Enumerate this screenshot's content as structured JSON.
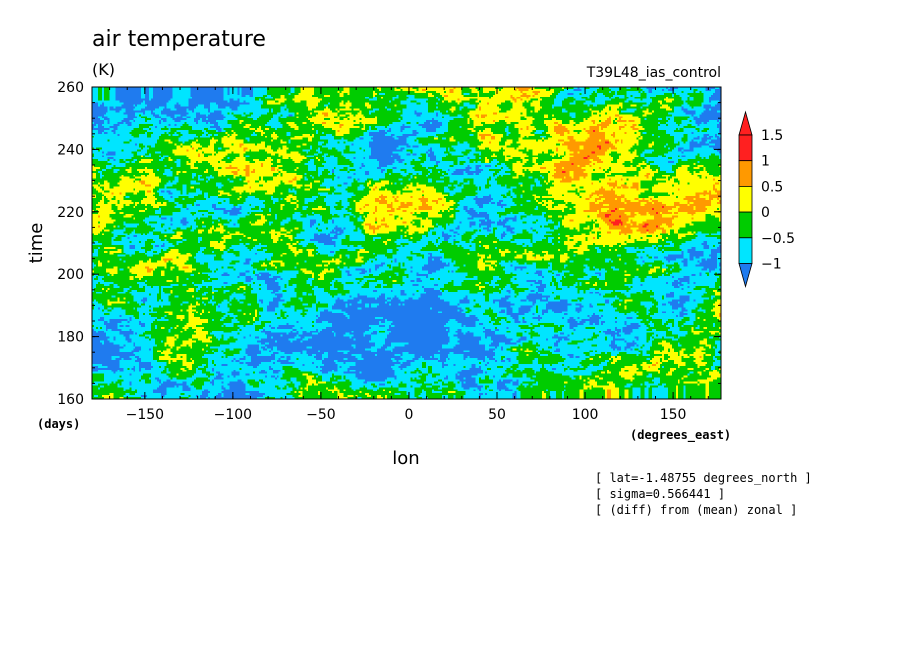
{
  "chart_data": {
    "type": "heatmap",
    "title": "air temperature",
    "units": "(K)",
    "experiment": "T39L48_ias_control",
    "xlabel": "lon",
    "ylabel": "time",
    "x_units": "(degrees_east)",
    "y_units": "(days)",
    "xlim": [
      -180,
      177.2
    ],
    "ylim": [
      160,
      260
    ],
    "x_ticks": [
      -150,
      -100,
      -50,
      0,
      50,
      100,
      150
    ],
    "y_ticks": [
      160,
      180,
      200,
      220,
      240,
      260
    ],
    "colorbar": {
      "levels": [
        -1,
        -0.5,
        0,
        0.5,
        1,
        1.5
      ],
      "colors": [
        "#1f7bef",
        "#00e5ff",
        "#00cc00",
        "#ffff00",
        "#ff9900",
        "#ff2020"
      ],
      "below_color": "#1f7bef",
      "above_color": "#ff2020"
    },
    "field": "zonal anomaly of air temperature (diff from mean zonal) as a longitude-time Hovmoller section; small-scale noisy structure ranging roughly -1.5 to +2 K",
    "annotations": [
      "[ lat=-1.48755 degrees_north ]",
      "[ sigma=0.566441 ]",
      "[ (diff) from (mean) zonal ]"
    ]
  }
}
